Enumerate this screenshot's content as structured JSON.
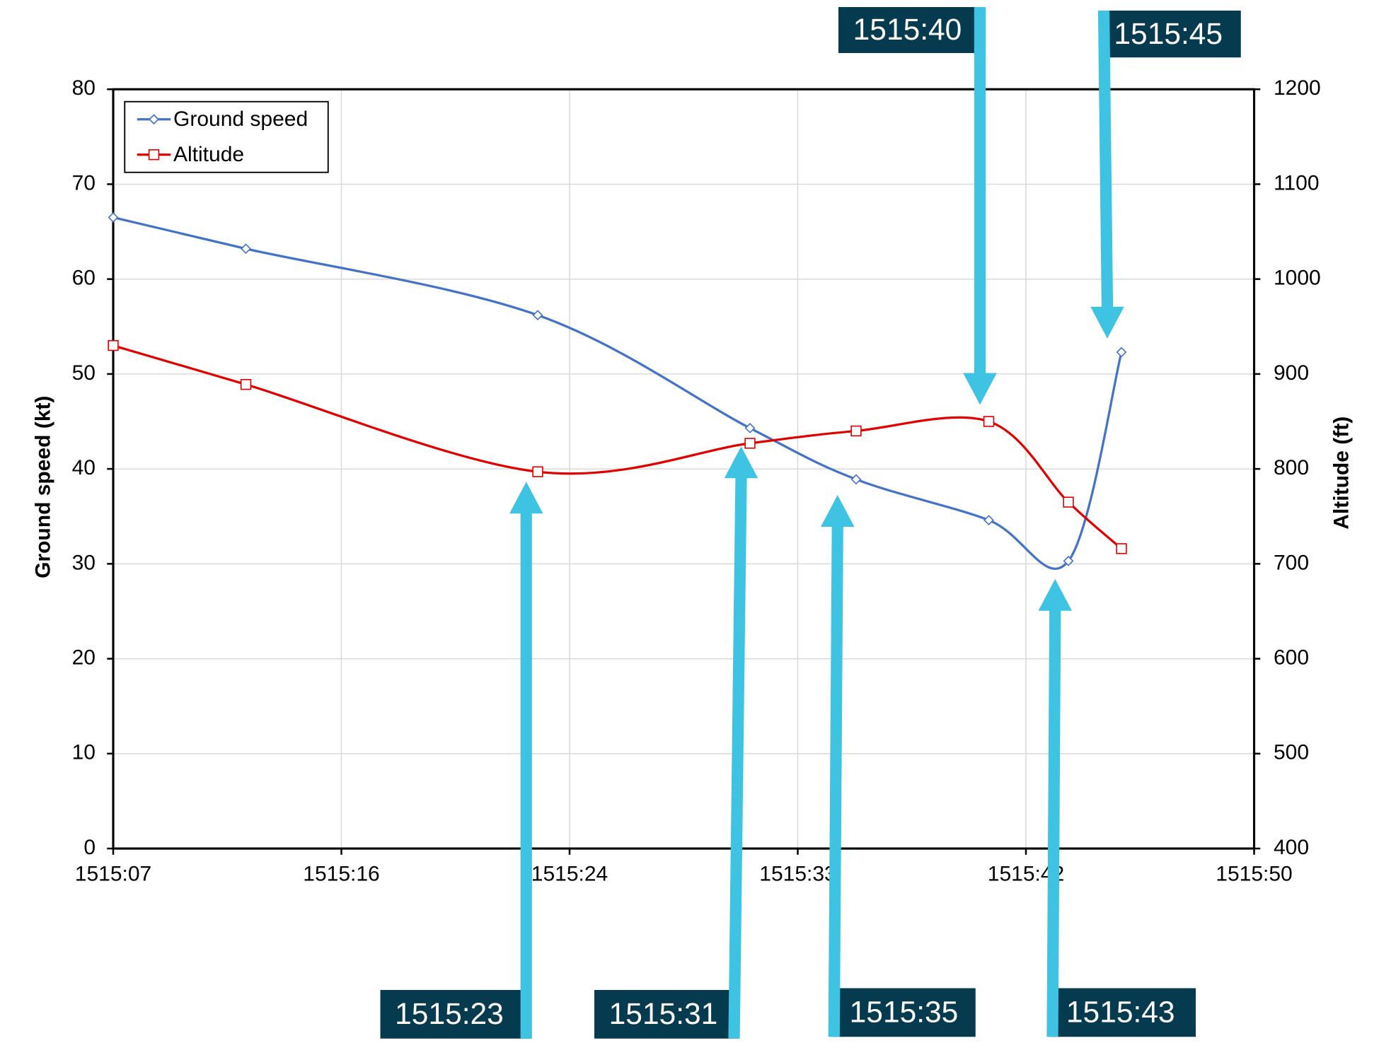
{
  "chart_data": {
    "type": "line",
    "x": [
      7,
      12,
      23,
      31,
      35,
      40,
      43,
      45
    ],
    "xlim": [
      7,
      50
    ],
    "xticks": [
      {
        "value": 7,
        "label": "1515:07"
      },
      {
        "value": 15.6,
        "label": "1515:16"
      },
      {
        "value": 24.2,
        "label": "1515:24"
      },
      {
        "value": 32.8,
        "label": "1515:33"
      },
      {
        "value": 41.4,
        "label": "1515:42"
      },
      {
        "value": 50,
        "label": "1515:50"
      }
    ],
    "ylabel": "Ground speed (kt)",
    "ylim": [
      0,
      80
    ],
    "yticks": [
      0,
      10,
      20,
      30,
      40,
      50,
      60,
      70,
      80
    ],
    "y2label": "Altitude (ft)",
    "y2lim": [
      400,
      1200
    ],
    "y2ticks": [
      400,
      500,
      600,
      700,
      800,
      900,
      1000,
      1100,
      1200
    ],
    "grid": true,
    "smooth": true,
    "legend": "upper left",
    "series": [
      {
        "name": "Ground speed",
        "color": "#4472c4",
        "marker": "diamond",
        "values": [
          66.5,
          63.2,
          56.2,
          44.3,
          38.9,
          34.6,
          30.3,
          52.3
        ]
      },
      {
        "name": "Altitude",
        "color": "#e00000",
        "marker": "square",
        "axis": "y2",
        "values": [
          930,
          889,
          797,
          827,
          840,
          850,
          765,
          716
        ]
      }
    ],
    "annotations": [
      "1515:23",
      "1515:31",
      "1515:35",
      "1515:43",
      "1515:40",
      "1515:45"
    ]
  }
}
